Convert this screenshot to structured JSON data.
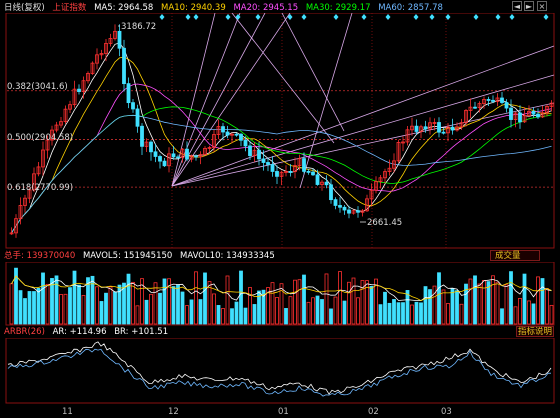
{
  "header": {
    "period": "日线(复权)",
    "index_name": "上证指数",
    "ma": [
      {
        "label": "MA5: 2964.58",
        "color": "#ffffff"
      },
      {
        "label": "MA10: 2940.39",
        "color": "#ffd200"
      },
      {
        "label": "MA20: 2945.15",
        "color": "#ff50ff"
      },
      {
        "label": "MA30: 2929.17",
        "color": "#00ff00"
      },
      {
        "label": "MA60: 2857.78",
        "color": "#6fb8ff"
      }
    ],
    "controls": [
      "◄",
      "►",
      "×"
    ]
  },
  "price_chart": {
    "high_label": "3186.72",
    "low_label": "2661.45",
    "fib_levels": [
      {
        "label": "0.382(3041.6)",
        "value": 3041.6
      },
      {
        "label": "0.500(2904.58)",
        "value": 2904.58
      },
      {
        "label": "0.618(2770.99)",
        "value": 2770.99
      }
    ],
    "y_range": [
      2600,
      3260
    ]
  },
  "volume_panel": {
    "title": "总手: 139370040",
    "mavol5": "MAVOL5: 151945150",
    "mavol10": "MAVOL10: 134933345",
    "button_label": "成交量"
  },
  "indicator_panel": {
    "title": "ARBR(26)",
    "ar": "AR: +114.96",
    "br": "BR: +101.51",
    "button_label": "指标说明"
  },
  "x_axis": {
    "ticks": [
      "11",
      "12",
      "01",
      "02",
      "03"
    ]
  },
  "colors": {
    "up": "#ff3030",
    "down": "#40e0ff",
    "grid_border": "#8a1010"
  }
}
